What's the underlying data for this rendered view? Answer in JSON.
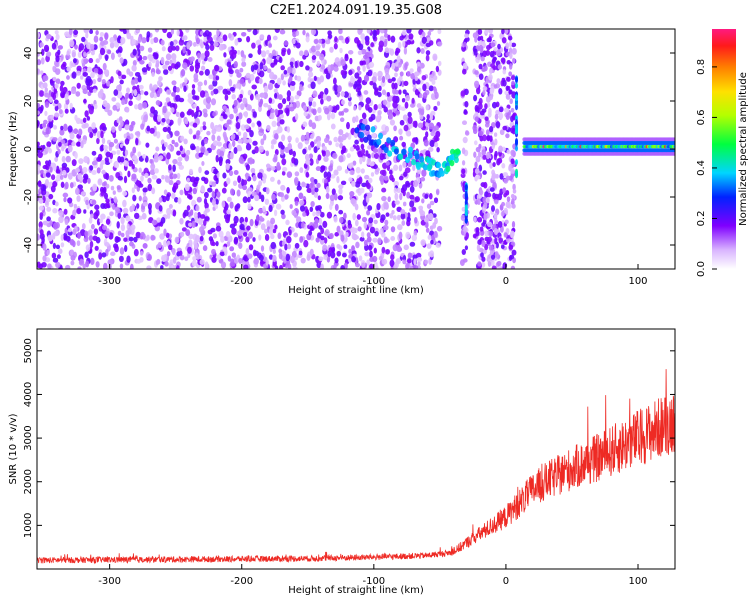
{
  "title": "C2E1.2024.091.19.35.G08",
  "colors": {
    "snr_line": "#ee2a24",
    "scatter_base": "#8a2be2",
    "scatter_dark": "#6a0dd8"
  },
  "chart_data": [
    {
      "type": "heatmap",
      "xlabel": "Height of straight line (km)",
      "ylabel": "Frequency (Hz)",
      "xlim": [
        -355,
        128
      ],
      "ylim": [
        -50,
        50
      ],
      "x_ticks": [
        -300,
        -200,
        -100,
        0,
        100
      ],
      "y_ticks": [
        -40,
        -20,
        0,
        20,
        40
      ],
      "colorbar": {
        "label": "Normalized spectral amplitude",
        "range": [
          0,
          0.95
        ],
        "ticks": [
          0.0,
          0.2,
          0.4,
          0.6,
          0.8
        ]
      },
      "features": {
        "noise_region_x": [
          -355,
          -50
        ],
        "noise_faded_x": [
          -50,
          -10
        ],
        "gap_x": [
          -50,
          -33
        ],
        "signal_track": [
          {
            "x": -112,
            "y": 8,
            "amp": 0.2
          },
          {
            "x": -100,
            "y": 5,
            "amp": 0.25
          },
          {
            "x": -85,
            "y": 0,
            "amp": 0.3
          },
          {
            "x": -70,
            "y": -3,
            "amp": 0.3
          },
          {
            "x": -58,
            "y": -7,
            "amp": 0.35
          },
          {
            "x": -50,
            "y": -10,
            "amp": 0.3
          },
          {
            "x": -42,
            "y": -5,
            "amp": 0.35
          },
          {
            "x": -35,
            "y": 0,
            "amp": 0.4
          }
        ],
        "tone_band": {
          "x": [
            14,
            128
          ],
          "y": 1,
          "amp_range": [
            0.3,
            0.9
          ]
        }
      }
    },
    {
      "type": "line",
      "xlabel": "Height of straight line (km)",
      "ylabel": "SNR (10 * v/v)",
      "xlim": [
        -355,
        128
      ],
      "ylim": [
        0,
        5500
      ],
      "x_ticks": [
        -300,
        -200,
        -100,
        0,
        100
      ],
      "y_ticks": [
        1000,
        2000,
        3000,
        4000,
        5000
      ],
      "series": [
        {
          "x": [
            -355,
            -300,
            -250,
            -200,
            -150,
            -100,
            -60,
            -40,
            -30,
            -20,
            -10,
            0,
            10,
            20,
            30,
            50,
            70,
            90,
            110,
            128
          ],
          "y": [
            200,
            210,
            220,
            230,
            240,
            270,
            310,
            380,
            600,
            800,
            1000,
            1200,
            1500,
            1800,
            2000,
            2300,
            2550,
            2850,
            3150,
            3400
          ]
        }
      ]
    }
  ]
}
